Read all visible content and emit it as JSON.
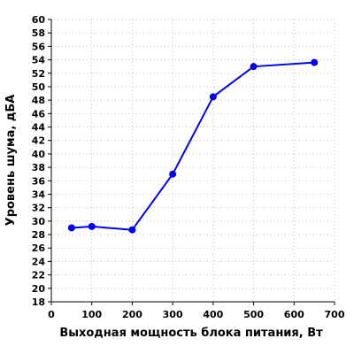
{
  "chart_data": {
    "type": "line",
    "title": "",
    "xlabel": "Выходная мощность блока питания, Вт",
    "ylabel": "Уровень шума, дБА",
    "xlim": [
      0,
      700
    ],
    "ylim": [
      18,
      60
    ],
    "x_ticks": [
      0,
      100,
      200,
      300,
      400,
      500,
      600,
      700
    ],
    "y_ticks": [
      18,
      20,
      22,
      24,
      26,
      28,
      30,
      32,
      34,
      36,
      38,
      40,
      42,
      44,
      46,
      48,
      50,
      52,
      54,
      56,
      58,
      60
    ],
    "grid": true,
    "legend": "none",
    "series": [
      {
        "color": "#0000ee",
        "points": [
          {
            "x": 50,
            "y": 29.0
          },
          {
            "x": 100,
            "y": 29.2
          },
          {
            "x": 200,
            "y": 28.7
          },
          {
            "x": 300,
            "y": 37.0
          },
          {
            "x": 400,
            "y": 48.5
          },
          {
            "x": 500,
            "y": 53.0
          },
          {
            "x": 650,
            "y": 53.6
          }
        ]
      }
    ],
    "colors": {
      "axis": "#000000",
      "grid": "#bbbbbb",
      "line": "#0000ee"
    }
  }
}
